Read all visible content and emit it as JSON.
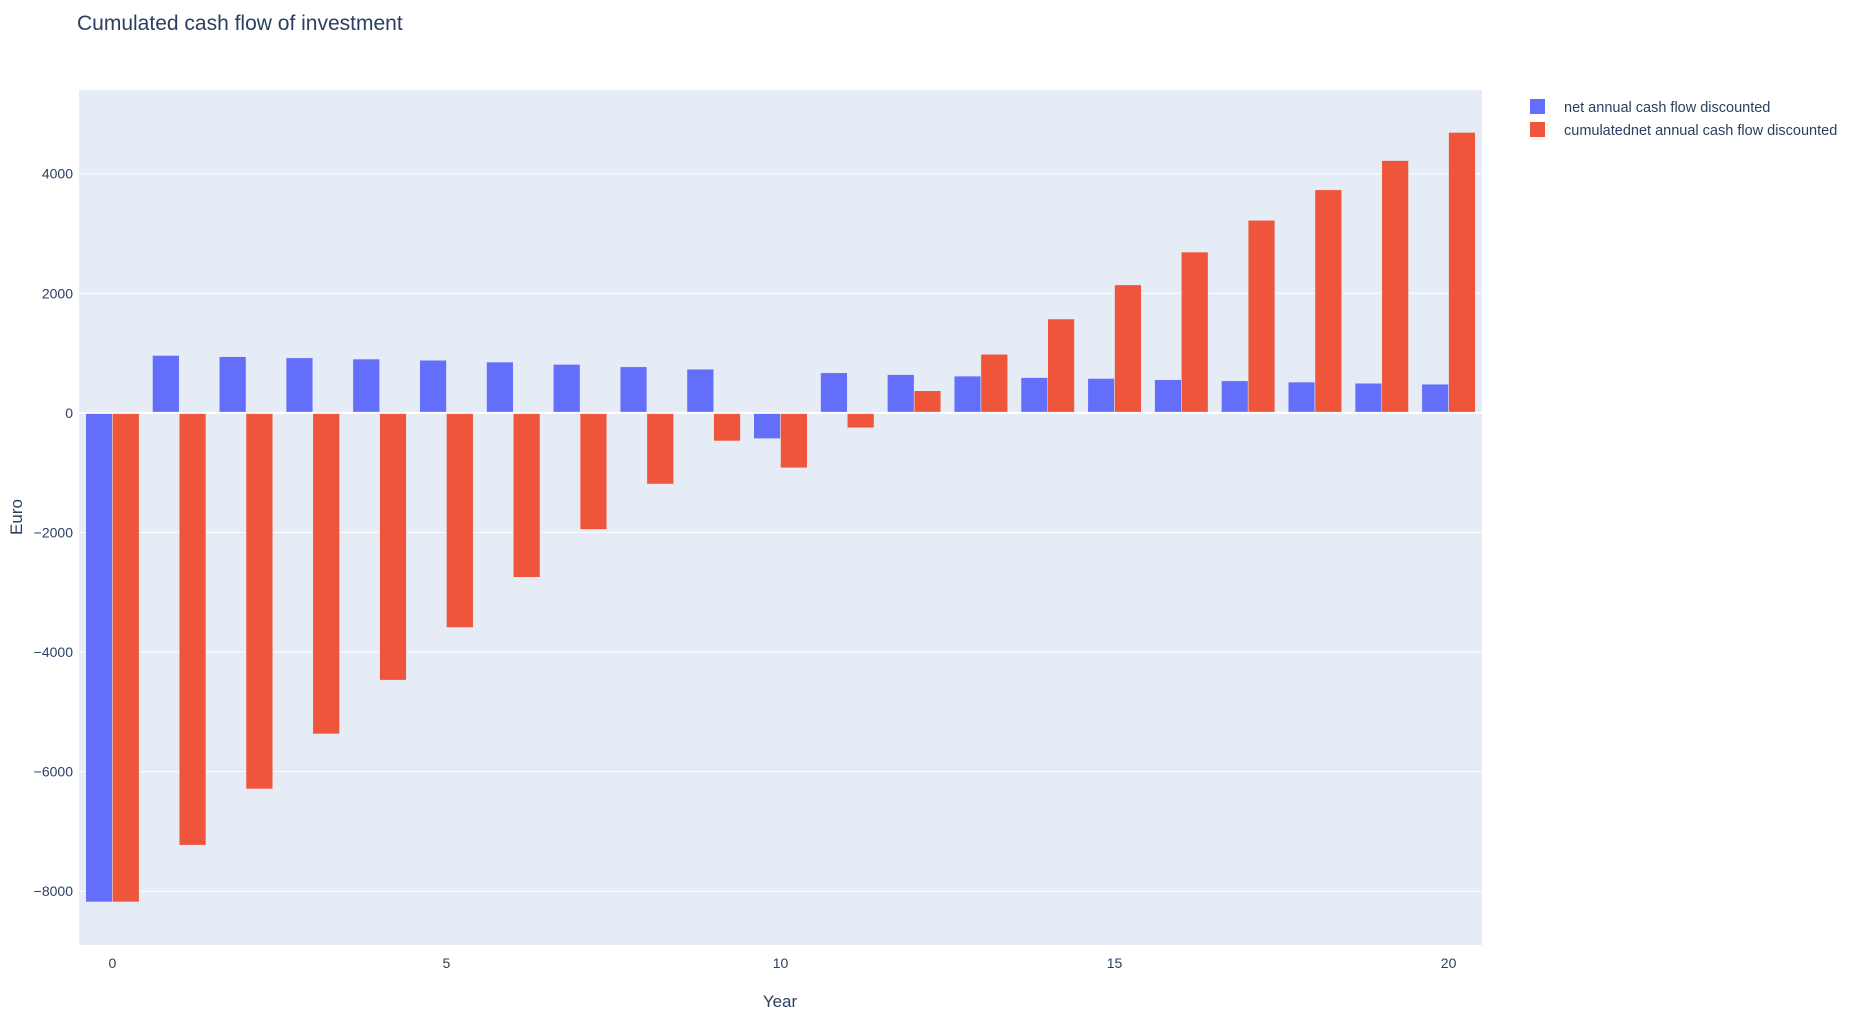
{
  "chart_data": {
    "type": "bar",
    "title": "Cumulated cash flow of investment",
    "xlabel": "Year",
    "ylabel": "Euro",
    "x": [
      0,
      1,
      2,
      3,
      4,
      5,
      6,
      7,
      8,
      9,
      10,
      11,
      12,
      13,
      14,
      15,
      16,
      17,
      18,
      19,
      20
    ],
    "xlim": [
      -0.5,
      20.5
    ],
    "ylim": [
      -8900,
      5400
    ],
    "x_ticks": [
      0,
      5,
      10,
      15,
      20
    ],
    "y_ticks": [
      -8000,
      -6000,
      -4000,
      -2000,
      0,
      2000,
      4000
    ],
    "x_tick_labels": [
      "0",
      "5",
      "10",
      "15",
      "20"
    ],
    "y_tick_labels": [
      "−8000",
      "−6000",
      "−4000",
      "−2000",
      "0",
      "2000",
      "4000"
    ],
    "grid": true,
    "legend_position": "top-right",
    "plot_background": "#e5ecf6",
    "series": [
      {
        "name": "net annual cash flow discounted",
        "color": "#636efa",
        "values": [
          -8180,
          960,
          940,
          920,
          900,
          880,
          850,
          810,
          770,
          730,
          -430,
          670,
          640,
          615,
          590,
          575,
          555,
          535,
          515,
          495,
          480
        ]
      },
      {
        "name": "cumulatednet annual cash flow discounted",
        "color": "#ef553b",
        "values": [
          -8180,
          -7230,
          -6290,
          -5370,
          -4470,
          -3590,
          -2750,
          -1950,
          -1190,
          -470,
          -920,
          -250,
          370,
          980,
          1570,
          2140,
          2690,
          3220,
          3730,
          4220,
          4690
        ]
      }
    ]
  }
}
